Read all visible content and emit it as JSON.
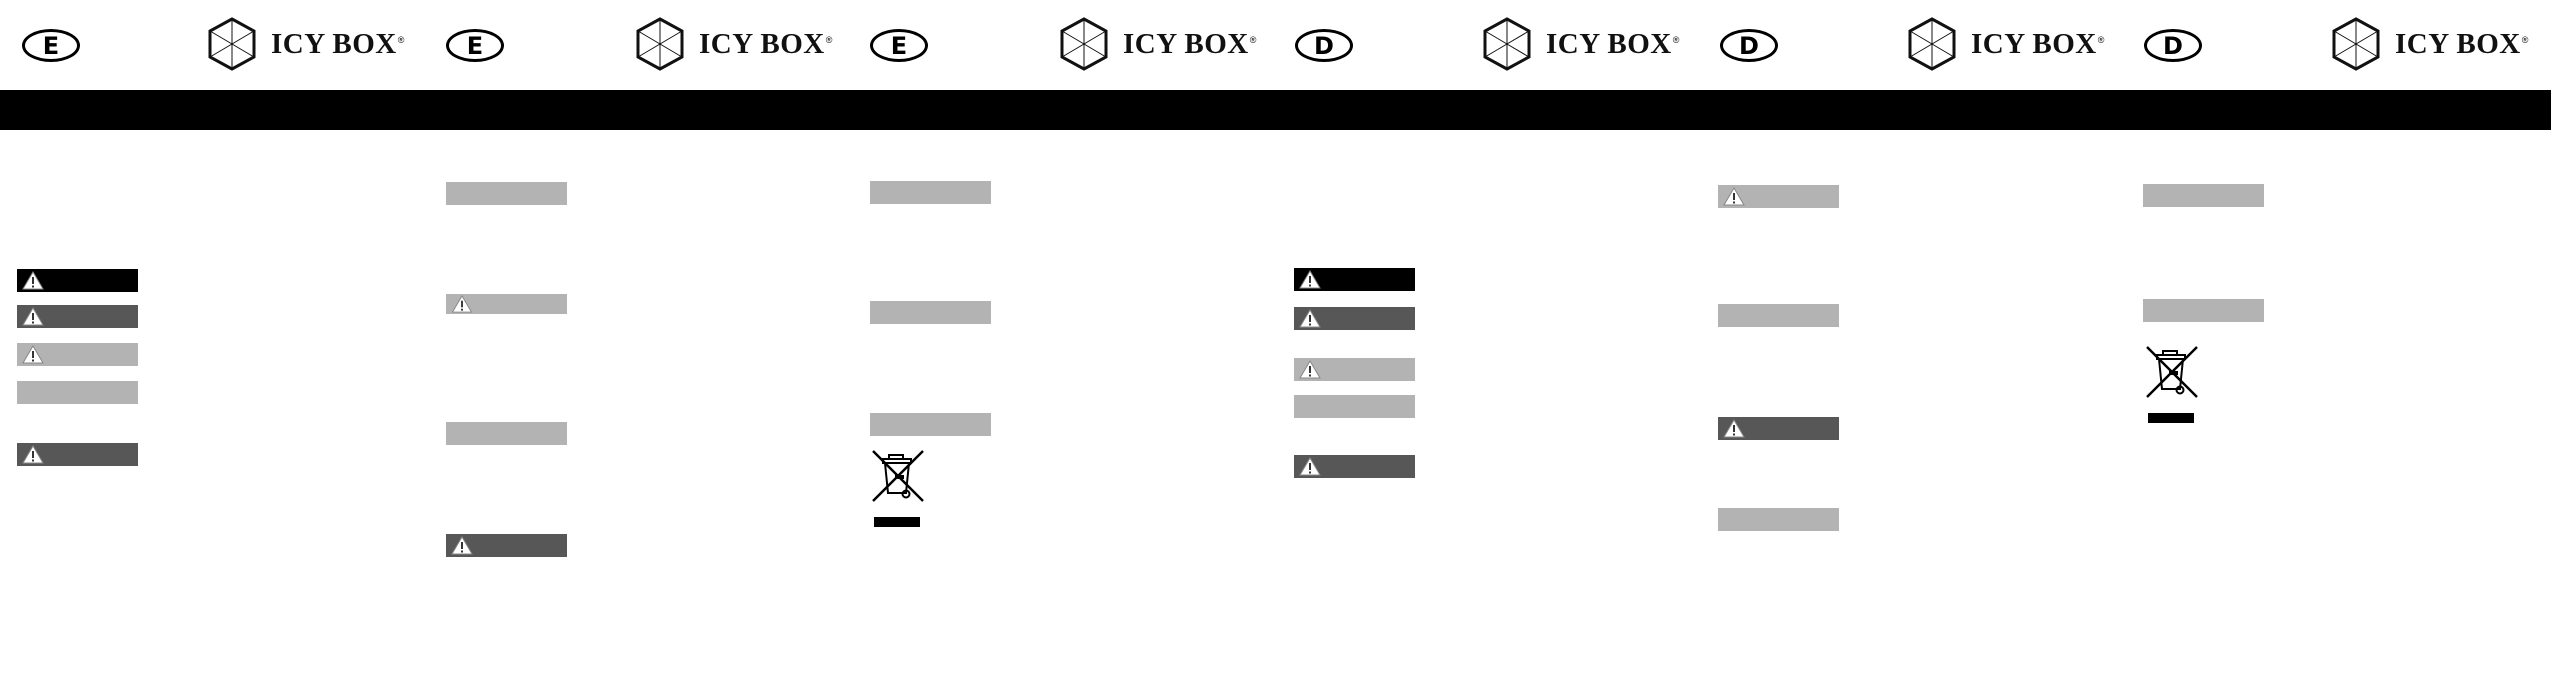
{
  "brand": {
    "name": "ICY BOX",
    "registered_mark": "®"
  },
  "panels": [
    {
      "language": "E"
    },
    {
      "language": "E"
    },
    {
      "language": "E"
    },
    {
      "language": "D"
    },
    {
      "language": "D"
    },
    {
      "language": "D"
    }
  ],
  "colors": {
    "band": "#000000",
    "dark_bar": "#575757",
    "light_bar": "#b3b3b3"
  },
  "icons": {
    "warning": "warning-triangle-icon",
    "weee": "crossed-out-wheelie-bin-icon",
    "logo": "cube-icon"
  }
}
